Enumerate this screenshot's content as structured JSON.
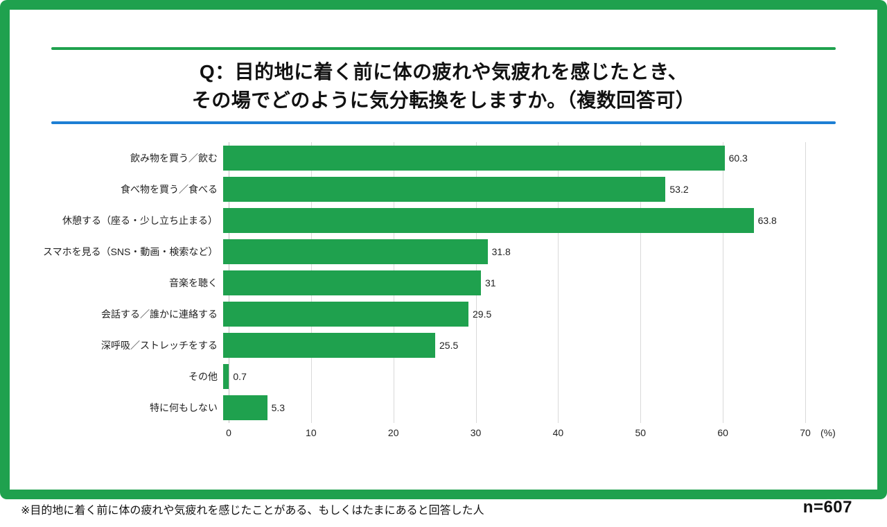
{
  "title": {
    "line1": "Q：目的地に着く前に体の疲れや気疲れを感じたとき、",
    "line2": "その場でどのように気分転換をしますか。（複数回答可）"
  },
  "colors": {
    "frame_green": "#1fa14e",
    "rule_green": "#1fa14e",
    "rule_blue": "#1d7fd4",
    "bar_green": "#1fa14e",
    "gridline": "#d9d9d9"
  },
  "chart_data": {
    "type": "bar",
    "orientation": "horizontal",
    "title": "Q：目的地に着く前に体の疲れや気疲れを感じたとき、その場でどのように気分転換をしますか。（複数回答可）",
    "categories": [
      "飲み物を買う／飲む",
      "食べ物を買う／食べる",
      "休憩する（座る・少し立ち止まる）",
      "スマホを見る（SNS・動画・検索など）",
      "音楽を聴く",
      "会話する／誰かに連絡する",
      "深呼吸／ストレッチをする",
      "その他",
      "特に何もしない"
    ],
    "values": [
      60.3,
      53.2,
      63.8,
      31.8,
      31,
      29.5,
      25.5,
      0.7,
      5.3
    ],
    "value_labels": [
      "60.3",
      "53.2",
      "63.8",
      "31.8",
      "31",
      "29.5",
      "25.5",
      "0.7",
      "5.3"
    ],
    "xlabel": "(%)",
    "ylabel": "",
    "xlim": [
      0,
      70
    ],
    "xticks": [
      0,
      10,
      20,
      30,
      40,
      50,
      60,
      70
    ],
    "x_unit": "(%)",
    "bar_color": "#1fa14e",
    "grid": true,
    "legend": "none"
  },
  "footer": {
    "note": "※目的地に着く前に体の疲れや気疲れを感じたことがある、もしくはたまにあると回答した人",
    "sample_size": "n=607"
  }
}
